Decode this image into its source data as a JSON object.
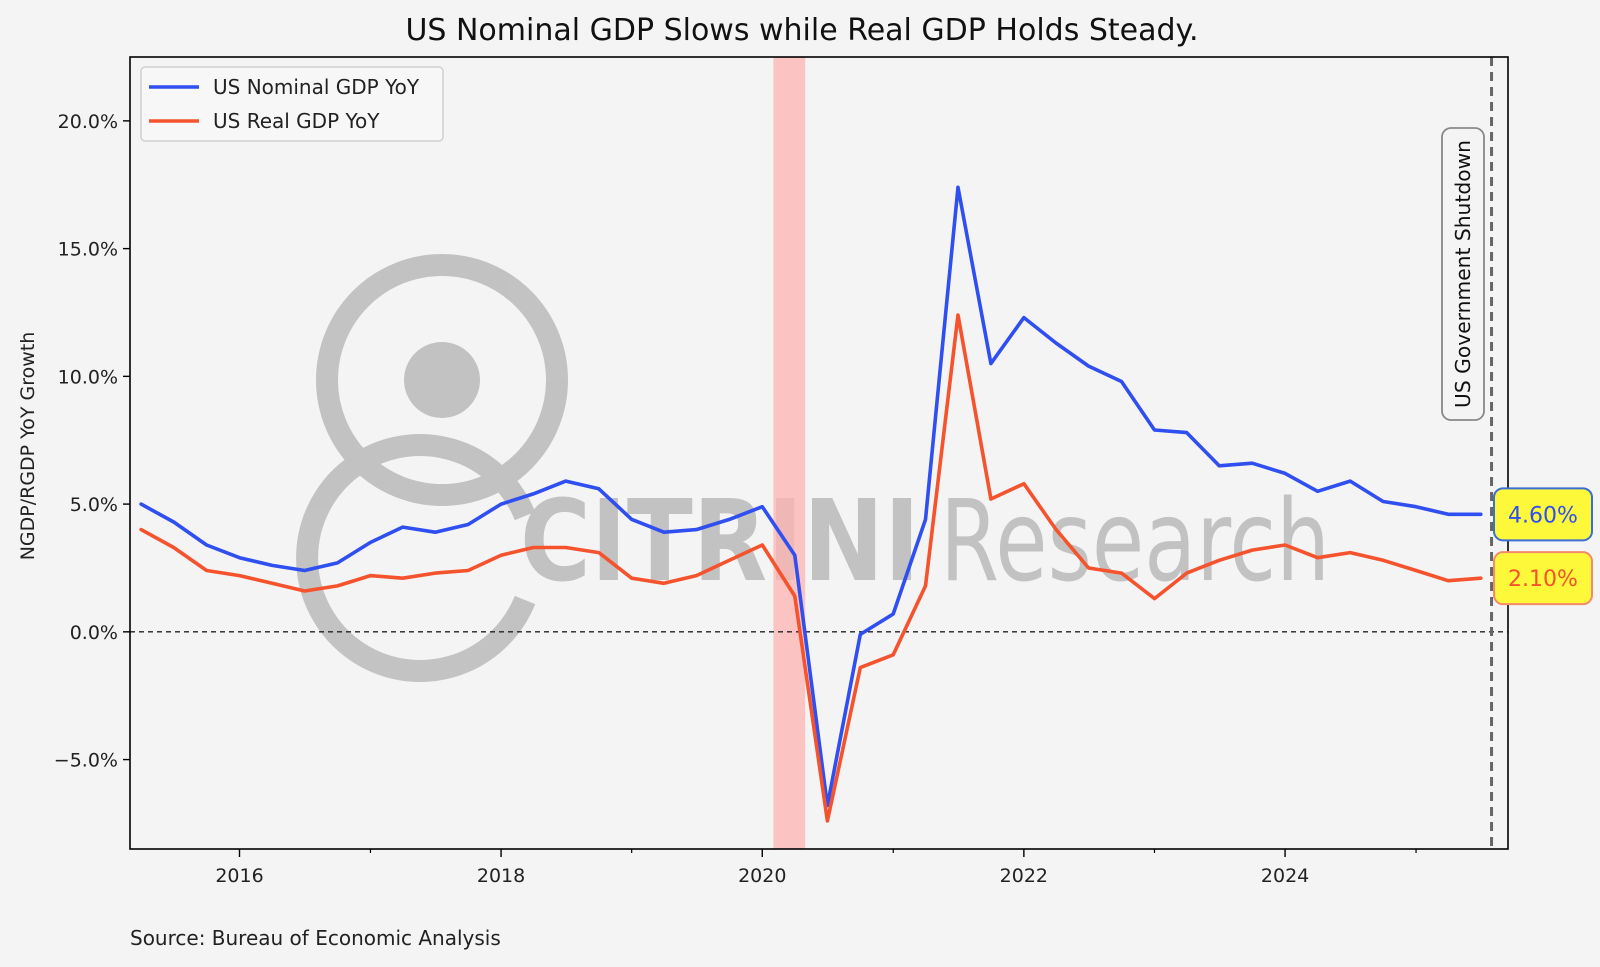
{
  "chart_data": {
    "type": "line",
    "title": "US Nominal GDP Slows while Real GDP Holds Steady.",
    "ylabel": "NGDP/RGDP YoY Growth",
    "xlabel": "",
    "source": "Source: Bureau of Economic Analysis",
    "xlim": [
      "2015-03-01",
      "2025-09-15"
    ],
    "ylim": [
      -8.5,
      22.5
    ],
    "yticks": [
      -5,
      0,
      5,
      10,
      15,
      20
    ],
    "ytick_labels": [
      "−5.0%",
      "0.0%",
      "5.0%",
      "10.0%",
      "15.0%",
      "20.0%"
    ],
    "xticks": [
      "2016-01-01",
      "2018-01-01",
      "2020-01-01",
      "2022-01-01",
      "2024-01-01"
    ],
    "xtick_labels": [
      "2016",
      "2018",
      "2020",
      "2022",
      "2024"
    ],
    "grid": false,
    "legend_position": "top-left",
    "dates": [
      "2015-04-01",
      "2015-07-01",
      "2015-10-01",
      "2016-01-01",
      "2016-04-01",
      "2016-07-01",
      "2016-10-01",
      "2017-01-01",
      "2017-04-01",
      "2017-07-01",
      "2017-10-01",
      "2018-01-01",
      "2018-04-01",
      "2018-07-01",
      "2018-10-01",
      "2019-01-01",
      "2019-04-01",
      "2019-07-01",
      "2019-10-01",
      "2020-01-01",
      "2020-04-01",
      "2020-07-01",
      "2020-10-01",
      "2021-01-01",
      "2021-04-01",
      "2021-07-01",
      "2021-10-01",
      "2022-01-01",
      "2022-04-01",
      "2022-07-01",
      "2022-10-01",
      "2023-01-01",
      "2023-04-01",
      "2023-07-01",
      "2023-10-01",
      "2024-01-01",
      "2024-04-01",
      "2024-07-01",
      "2024-10-01",
      "2025-01-01",
      "2025-04-01",
      "2025-07-01"
    ],
    "series": [
      {
        "name": "US Nominal GDP YoY",
        "color": "#2f4ff0",
        "values": [
          5.0,
          4.3,
          3.4,
          2.9,
          2.6,
          2.4,
          2.7,
          3.5,
          4.1,
          3.9,
          4.2,
          5.0,
          5.4,
          5.9,
          5.6,
          4.4,
          3.9,
          4.0,
          4.4,
          4.9,
          3.0,
          -6.8,
          -0.1,
          0.7,
          4.4,
          17.4,
          10.5,
          12.3,
          11.3,
          10.4,
          9.8,
          7.9,
          7.8,
          6.5,
          6.6,
          6.2,
          5.5,
          5.9,
          5.1,
          4.9,
          4.6,
          4.6
        ]
      },
      {
        "name": "US Real GDP YoY",
        "color": "#f5532d",
        "values": [
          4.0,
          3.3,
          2.4,
          2.2,
          1.9,
          1.6,
          1.8,
          2.2,
          2.1,
          2.3,
          2.4,
          3.0,
          3.3,
          3.3,
          3.1,
          2.1,
          1.9,
          2.2,
          2.8,
          3.4,
          1.4,
          -7.4,
          -1.4,
          -0.9,
          1.8,
          12.4,
          5.2,
          5.8,
          4.0,
          2.5,
          2.3,
          1.3,
          2.3,
          2.8,
          3.2,
          3.4,
          2.9,
          3.1,
          2.8,
          2.4,
          2.0,
          2.1
        ]
      }
    ],
    "end_labels": [
      {
        "text": "4.60%",
        "value": 4.6,
        "text_color": "#2f4ff0",
        "border_color": "#3b6fd4",
        "fill": "#fdf83a"
      },
      {
        "text": "2.10%",
        "value": 2.1,
        "text_color": "#f5532d",
        "border_color": "#f58a6a",
        "fill": "#fdf83a"
      }
    ],
    "recession_band": {
      "start": "2020-02-01",
      "end": "2020-04-30",
      "color": "#ffb3b3"
    },
    "shutdown_line": {
      "date": "2025-07-31",
      "label": "US Government Shutdown"
    },
    "zero_line": 0,
    "watermark": {
      "brand": "CITRINI",
      "suffix": "Research"
    }
  }
}
